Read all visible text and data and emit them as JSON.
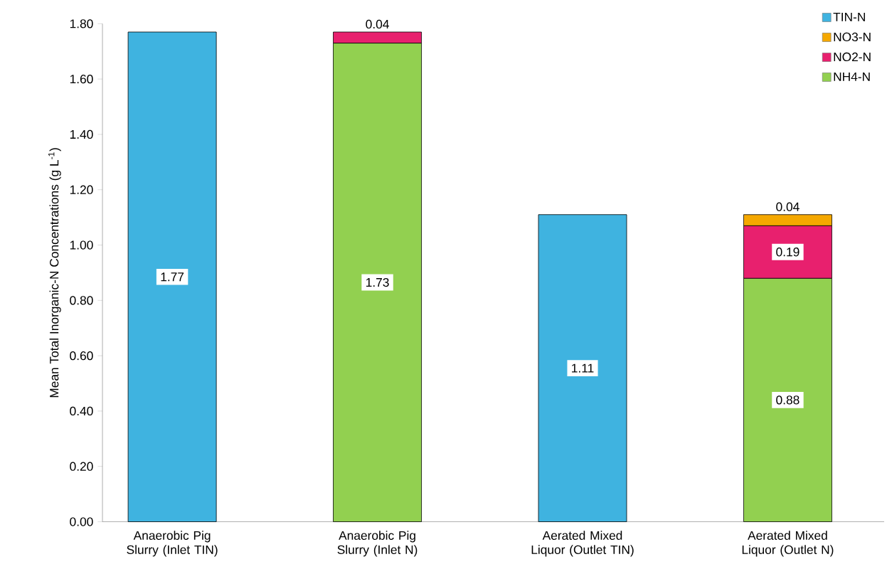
{
  "chart_data": {
    "type": "bar",
    "stacked": true,
    "ylabel": "Mean Total Inorganic-N Concentrations (g L$^{-1}$)",
    "categories": [
      "Anaerobic Pig Slurry (Inlet TIN)",
      "Anaerobic Pig Slurry (Inlet N)",
      "Aerated Mixed Liquor (Outlet TIN)",
      "Aerated Mixed Liquor (Outlet N)"
    ],
    "series": [
      {
        "name": "NH4-N",
        "color": "#92d050",
        "values": [
          null,
          1.73,
          null,
          0.88
        ],
        "value_labels": [
          null,
          "1.73",
          null,
          "0.88"
        ]
      },
      {
        "name": "NO2-N",
        "color": "#e8206e",
        "values": [
          null,
          0.04,
          null,
          0.19
        ],
        "value_labels": [
          null,
          "0.04",
          null,
          "0.19"
        ]
      },
      {
        "name": "NO3-N",
        "color": "#f5a800",
        "values": [
          null,
          null,
          null,
          0.04
        ],
        "value_labels": [
          null,
          null,
          null,
          "0.04"
        ]
      },
      {
        "name": "TIN-N",
        "color": "#3fb3e0",
        "values": [
          1.77,
          null,
          1.11,
          null
        ],
        "value_labels": [
          "1.77",
          null,
          "1.11",
          null
        ]
      }
    ],
    "ylim": [
      0,
      1.8
    ],
    "yticks": [
      {
        "value": 0,
        "label": "0.00"
      },
      {
        "value": 0.2,
        "label": "0.20"
      },
      {
        "value": 0.4,
        "label": "0.40"
      },
      {
        "value": 0.6,
        "label": "0.60"
      },
      {
        "value": 0.8,
        "label": "0.80"
      },
      {
        "value": 1.0,
        "label": "1.00"
      },
      {
        "value": 1.2,
        "label": "1.20"
      },
      {
        "value": 1.4,
        "label": "1.40"
      },
      {
        "value": 1.6,
        "label": "1.60"
      },
      {
        "value": 1.8,
        "label": "1.80"
      }
    ],
    "legend": "top right",
    "grid": false
  }
}
